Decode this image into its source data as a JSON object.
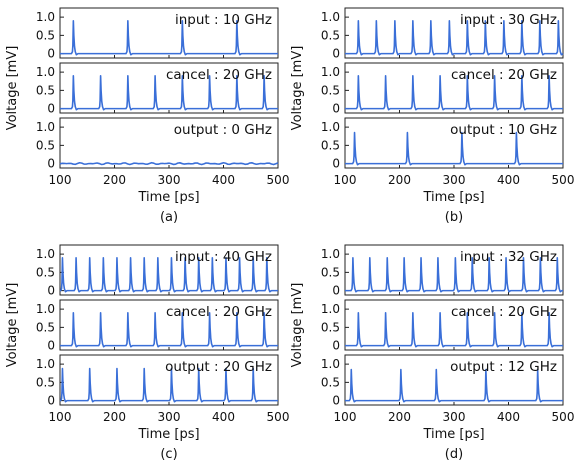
{
  "chart_data": [
    {
      "type": "line",
      "caption": "(a)",
      "xlabel": "Time [ps]",
      "ylabel": "Voltage [mV]",
      "xlim": [
        100,
        500
      ],
      "xticks": [
        100,
        200,
        300,
        400,
        500
      ],
      "line_color": "#3a6fd8",
      "panels": [
        {
          "label": "input : 10 GHz",
          "ylim": [
            0,
            1.25
          ],
          "yticks": [
            0,
            0.5,
            1.0
          ],
          "ytick_labels": [
            "0",
            "0.5",
            "1.0"
          ],
          "peak_times_ps": [
            125,
            225,
            325,
            425
          ],
          "peak_height_mv": 0.9
        },
        {
          "label": "cancel : 20 GHz",
          "ylim": [
            0,
            1.25
          ],
          "yticks": [
            0,
            0.5,
            1.0
          ],
          "ytick_labels": [
            "0",
            "0.5",
            "1.0"
          ],
          "peak_times_ps": [
            125,
            175,
            225,
            275,
            325,
            375,
            425,
            475
          ],
          "peak_height_mv": 0.9
        },
        {
          "label": "output : 0 GHz",
          "ylim": [
            0,
            1.25
          ],
          "yticks": [
            0,
            0.5,
            1.0
          ],
          "ytick_labels": [
            "0",
            "0.5",
            "1.0"
          ],
          "peak_times_ps": [],
          "peak_height_mv": 0
        }
      ]
    },
    {
      "type": "line",
      "caption": "(b)",
      "xlabel": "Time [ps]",
      "ylabel": "Voltage [mV]",
      "xlim": [
        100,
        500
      ],
      "xticks": [
        100,
        200,
        300,
        400,
        500
      ],
      "line_color": "#3a6fd8",
      "panels": [
        {
          "label": "input : 30 GHz",
          "ylim": [
            0,
            1.25
          ],
          "yticks": [
            0,
            0.5,
            1.0
          ],
          "ytick_labels": [
            "0",
            "0.5",
            "1.0"
          ],
          "peak_times_ps": [
            125,
            158,
            192,
            225,
            258,
            292,
            325,
            358,
            392,
            425,
            458,
            492
          ],
          "peak_height_mv": 0.9
        },
        {
          "label": "cancel : 20 GHz",
          "ylim": [
            0,
            1.25
          ],
          "yticks": [
            0,
            0.5,
            1.0
          ],
          "ytick_labels": [
            "0",
            "0.5",
            "1.0"
          ],
          "peak_times_ps": [
            125,
            175,
            225,
            275,
            325,
            375,
            425,
            475
          ],
          "peak_height_mv": 0.9
        },
        {
          "label": "output : 10 GHz",
          "ylim": [
            0,
            1.25
          ],
          "yticks": [
            0,
            0.5,
            1.0
          ],
          "ytick_labels": [
            "0",
            "0.5",
            "1.0"
          ],
          "peak_times_ps": [
            118,
            215,
            315,
            415
          ],
          "peak_height_mv": 0.85
        }
      ]
    },
    {
      "type": "line",
      "caption": "(c)",
      "xlabel": "Time [ps]",
      "ylabel": "Voltage [mV]",
      "xlim": [
        100,
        500
      ],
      "xticks": [
        100,
        200,
        300,
        400,
        500
      ],
      "line_color": "#3a6fd8",
      "panels": [
        {
          "label": "input : 40 GHz",
          "ylim": [
            0,
            1.25
          ],
          "yticks": [
            0,
            0.5,
            1.0
          ],
          "ytick_labels": [
            "0",
            "0.5",
            "1.0"
          ],
          "peak_times_ps": [
            105,
            130,
            155,
            180,
            205,
            230,
            255,
            280,
            305,
            330,
            355,
            380,
            405,
            430,
            455,
            480
          ],
          "peak_height_mv": 0.9
        },
        {
          "label": "cancel : 20 GHz",
          "ylim": [
            0,
            1.25
          ],
          "yticks": [
            0,
            0.5,
            1.0
          ],
          "ytick_labels": [
            "0",
            "0.5",
            "1.0"
          ],
          "peak_times_ps": [
            125,
            175,
            225,
            275,
            325,
            375,
            425,
            475
          ],
          "peak_height_mv": 0.9
        },
        {
          "label": "output : 20 GHz",
          "ylim": [
            0,
            1.25
          ],
          "yticks": [
            0,
            0.5,
            1.0
          ],
          "ytick_labels": [
            "0",
            "0.5",
            "1.0"
          ],
          "peak_times_ps": [
            105,
            155,
            205,
            255,
            305,
            355,
            405,
            455
          ],
          "peak_height_mv": 0.88
        }
      ]
    },
    {
      "type": "line",
      "caption": "(d)",
      "xlabel": "Time [ps]",
      "ylabel": "Voltage [mV]",
      "xlim": [
        100,
        500
      ],
      "xticks": [
        100,
        200,
        300,
        400,
        500
      ],
      "line_color": "#3a6fd8",
      "panels": [
        {
          "label": "input : 32 GHz",
          "ylim": [
            0,
            1.25
          ],
          "yticks": [
            0,
            0.5,
            1.0
          ],
          "ytick_labels": [
            "0",
            "0.5",
            "1.0"
          ],
          "peak_times_ps": [
            115,
            146,
            178,
            209,
            240,
            271,
            303,
            334,
            365,
            396,
            428,
            459,
            490
          ],
          "peak_height_mv": 0.9
        },
        {
          "label": "cancel : 20 GHz",
          "ylim": [
            0,
            1.25
          ],
          "yticks": [
            0,
            0.5,
            1.0
          ],
          "ytick_labels": [
            "0",
            "0.5",
            "1.0"
          ],
          "peak_times_ps": [
            125,
            175,
            225,
            275,
            325,
            375,
            425,
            475
          ],
          "peak_height_mv": 0.9
        },
        {
          "label": "output : 12 GHz",
          "ylim": [
            0,
            1.25
          ],
          "yticks": [
            0,
            0.5,
            1.0
          ],
          "ytick_labels": [
            "0",
            "0.5",
            "1.0"
          ],
          "peak_times_ps": [
            112,
            203,
            268,
            359,
            454
          ],
          "peak_height_mv": 0.85
        }
      ]
    }
  ]
}
